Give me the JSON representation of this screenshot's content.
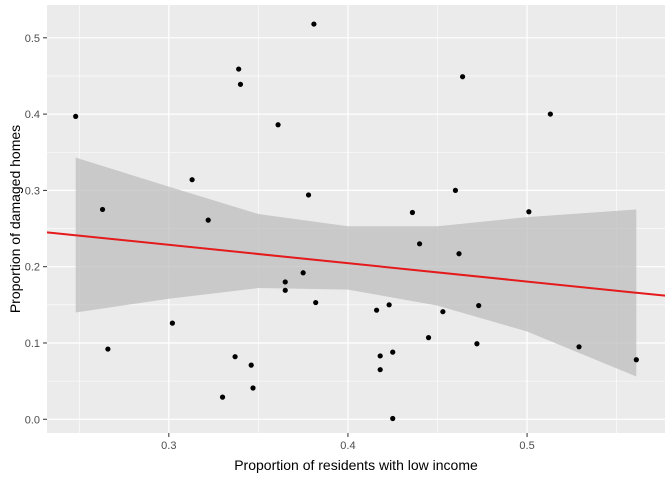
{
  "chart_data": {
    "type": "scatter",
    "title": "",
    "xlabel": "Proportion of residents with low income",
    "ylabel": "Proportion of damaged homes",
    "xlim": [
      0.232,
      0.577
    ],
    "ylim": [
      -0.018,
      0.543
    ],
    "x_ticks": [
      0.3,
      0.4,
      0.5
    ],
    "x_tick_labels": [
      "0.3",
      "0.4",
      "0.5"
    ],
    "y_ticks": [
      0.0,
      0.1,
      0.2,
      0.3,
      0.4,
      0.5
    ],
    "y_tick_labels": [
      "0.0",
      "0.1",
      "0.2",
      "0.3",
      "0.4",
      "0.5"
    ],
    "grid": true,
    "points": [
      {
        "x": 0.248,
        "y": 0.397
      },
      {
        "x": 0.263,
        "y": 0.275
      },
      {
        "x": 0.266,
        "y": 0.092
      },
      {
        "x": 0.302,
        "y": 0.126
      },
      {
        "x": 0.313,
        "y": 0.314
      },
      {
        "x": 0.322,
        "y": 0.261
      },
      {
        "x": 0.33,
        "y": 0.029
      },
      {
        "x": 0.337,
        "y": 0.082
      },
      {
        "x": 0.339,
        "y": 0.459
      },
      {
        "x": 0.34,
        "y": 0.439
      },
      {
        "x": 0.346,
        "y": 0.071
      },
      {
        "x": 0.347,
        "y": 0.041
      },
      {
        "x": 0.361,
        "y": 0.386
      },
      {
        "x": 0.365,
        "y": 0.18
      },
      {
        "x": 0.365,
        "y": 0.169
      },
      {
        "x": 0.375,
        "y": 0.192
      },
      {
        "x": 0.378,
        "y": 0.294
      },
      {
        "x": 0.381,
        "y": 0.518
      },
      {
        "x": 0.382,
        "y": 0.153
      },
      {
        "x": 0.416,
        "y": 0.143
      },
      {
        "x": 0.418,
        "y": 0.083
      },
      {
        "x": 0.418,
        "y": 0.065
      },
      {
        "x": 0.423,
        "y": 0.15
      },
      {
        "x": 0.425,
        "y": 0.088
      },
      {
        "x": 0.425,
        "y": 0.001
      },
      {
        "x": 0.436,
        "y": 0.271
      },
      {
        "x": 0.44,
        "y": 0.23
      },
      {
        "x": 0.445,
        "y": 0.107
      },
      {
        "x": 0.453,
        "y": 0.141
      },
      {
        "x": 0.46,
        "y": 0.3
      },
      {
        "x": 0.462,
        "y": 0.217
      },
      {
        "x": 0.464,
        "y": 0.449
      },
      {
        "x": 0.472,
        "y": 0.099
      },
      {
        "x": 0.473,
        "y": 0.149
      },
      {
        "x": 0.501,
        "y": 0.272
      },
      {
        "x": 0.513,
        "y": 0.4
      },
      {
        "x": 0.529,
        "y": 0.095
      },
      {
        "x": 0.561,
        "y": 0.078
      }
    ],
    "regression_line": {
      "x_start": 0.232,
      "y_start": 0.245,
      "x_end": 0.577,
      "y_end": 0.162
    },
    "confidence_band": {
      "x": [
        0.248,
        0.3,
        0.35,
        0.4,
        0.45,
        0.5,
        0.561
      ],
      "lower": [
        0.14,
        0.158,
        0.172,
        0.17,
        0.149,
        0.115,
        0.056
      ],
      "upper": [
        0.343,
        0.305,
        0.269,
        0.253,
        0.253,
        0.265,
        0.275
      ]
    },
    "colors": {
      "panel_background": "#ebebeb",
      "grid": "#ffffff",
      "points": "#000000",
      "line": "#e41a1c",
      "band": "#bdbdbd"
    }
  }
}
